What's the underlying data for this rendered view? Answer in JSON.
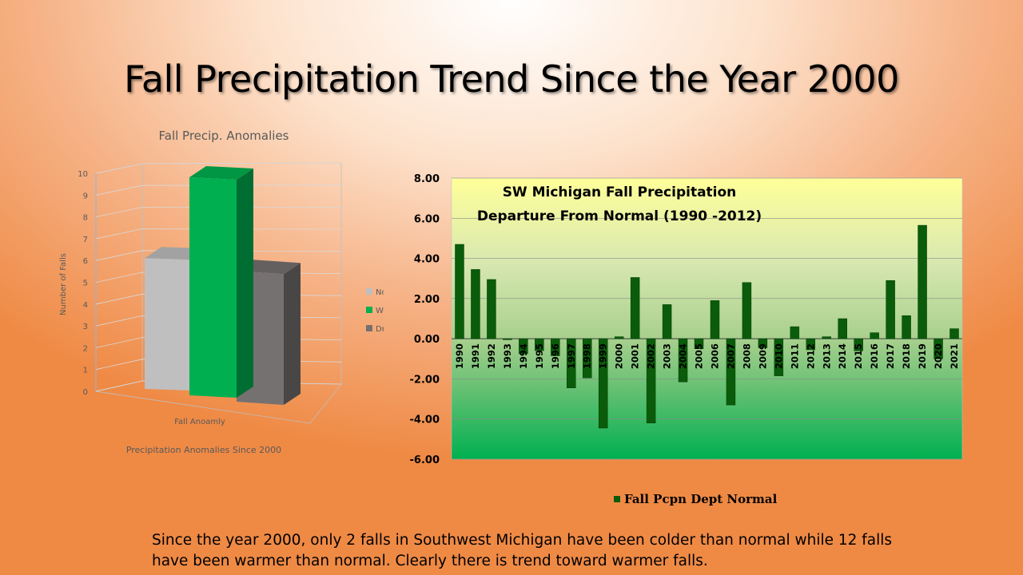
{
  "slide": {
    "title": "Fall Precipitation Trend Since the Year 2000",
    "caption": "Since the year 2000, only 2 falls in Southwest Michigan have been colder than  normal while 12 falls have been warmer than normal.  Clearly there is trend toward warmer falls."
  },
  "chart_data": [
    {
      "type": "bar",
      "style": "3d-column",
      "title": "Fall Precip. Anomalies",
      "xlabel": "Precipitation Anomalies Since 2000",
      "ylabel": "Number  of Falls",
      "categories": [
        "Fall Anoamly"
      ],
      "series": [
        {
          "name": "Normal",
          "values": [
            6
          ],
          "color": "#bfbfbf"
        },
        {
          "name": "Wet",
          "values": [
            10
          ],
          "color": "#00b050"
        },
        {
          "name": "Dry",
          "values": [
            6
          ],
          "color": "#767171"
        }
      ],
      "ylim": [
        0,
        10
      ],
      "yticks": [
        0,
        1,
        2,
        3,
        4,
        5,
        6,
        7,
        8,
        9,
        10
      ],
      "legend": "right",
      "grid": true
    },
    {
      "type": "bar",
      "title": "SW Michigan Fall Precipitation",
      "subtitle": "Departure From Normal (1990 -2012)",
      "categories": [
        "1990",
        "1991",
        "1992",
        "1993",
        "1994",
        "1995",
        "1996",
        "1997",
        "1998",
        "1999",
        "2000",
        "2001",
        "2002",
        "2003",
        "2004",
        "2005",
        "2006",
        "2007",
        "2008",
        "2009",
        "2010",
        "2011",
        "2012",
        "2013",
        "2014",
        "2015",
        "2016",
        "2017",
        "2018",
        "2019",
        "2020",
        "2021"
      ],
      "series": [
        {
          "name": "Fall Pcpn Dept Normal",
          "color": "#0a5c0a",
          "values": [
            4.7,
            3.45,
            2.95,
            -0.05,
            -0.75,
            -0.6,
            -0.85,
            -2.45,
            -1.95,
            -4.45,
            0.1,
            3.05,
            -4.2,
            1.7,
            -2.15,
            -0.5,
            1.9,
            -3.3,
            2.8,
            -0.45,
            -1.85,
            0.6,
            -0.55,
            0.1,
            1.0,
            -0.6,
            0.3,
            2.9,
            1.15,
            5.65,
            -1.0,
            0.5
          ]
        }
      ],
      "ylim": [
        -6,
        8
      ],
      "yticks": [
        "8.00",
        "6.00",
        "4.00",
        "2.00",
        "0.00",
        "-2.00",
        "-4.00",
        "-6.00"
      ],
      "legend": "bottom",
      "grid": true
    }
  ]
}
